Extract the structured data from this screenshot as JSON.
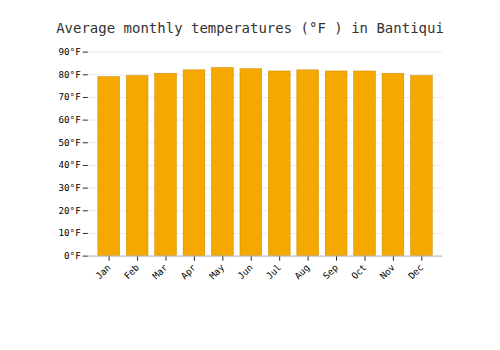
{
  "chart_data": {
    "type": "bar",
    "title": "Average monthly temperatures (°F ) in Bantiqui",
    "categories": [
      "Jan",
      "Feb",
      "Mar",
      "Apr",
      "May",
      "Jun",
      "Jul",
      "Aug",
      "Sep",
      "Oct",
      "Nov",
      "Dec"
    ],
    "values": [
      79.0,
      79.5,
      80.5,
      82.0,
      83.0,
      82.5,
      81.5,
      82.0,
      81.5,
      81.5,
      80.5,
      79.5
    ],
    "color": "#F5A800",
    "ylim": [
      0,
      90
    ],
    "yticks": [
      {
        "value": 0,
        "label": "0°F"
      },
      {
        "value": 10,
        "label": "10°F"
      },
      {
        "value": 20,
        "label": "20°F"
      },
      {
        "value": 30,
        "label": "30°F"
      },
      {
        "value": 40,
        "label": "40°F"
      },
      {
        "value": 50,
        "label": "50°F"
      },
      {
        "value": 60,
        "label": "60°F"
      },
      {
        "value": 70,
        "label": "70°F"
      },
      {
        "value": 80,
        "label": "80°F"
      },
      {
        "value": 90,
        "label": "90°F"
      }
    ],
    "grid": true
  }
}
